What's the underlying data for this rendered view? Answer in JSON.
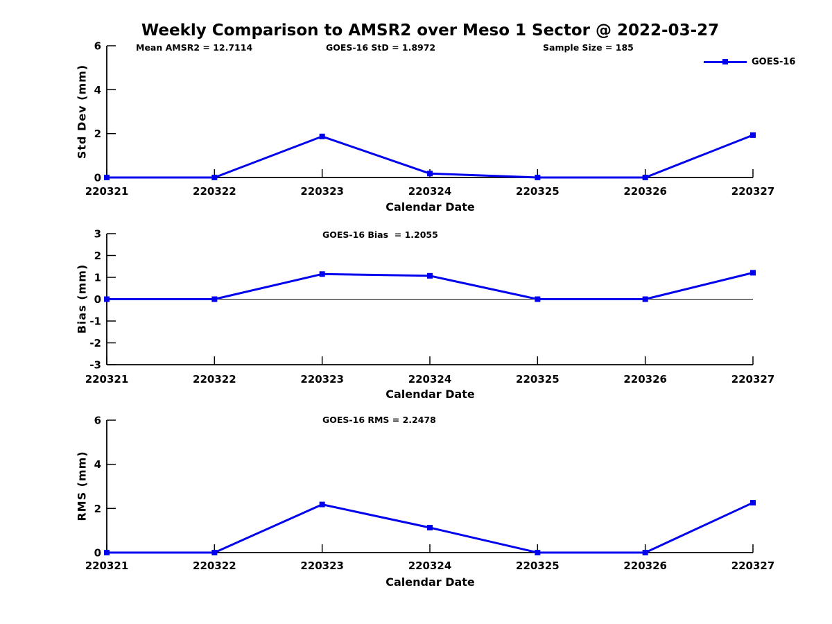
{
  "title": "Weekly Comparison to AMSR2 over Meso 1 Sector @ 2022-03-27",
  "legend": {
    "label": "GOES-16"
  },
  "colors": {
    "line": "#0000EE",
    "axis": "#000000"
  },
  "chart_data": [
    {
      "type": "line",
      "name": "std-dev",
      "annotations": [
        "Mean AMSR2 = 12.7114",
        "GOES-16 StD = 1.8972",
        "Sample Size = 185"
      ],
      "ylabel": "Std Dev (mm)",
      "xlabel": "Calendar Date",
      "categories": [
        "220321",
        "220322",
        "220323",
        "220324",
        "220325",
        "220326",
        "220327"
      ],
      "series": [
        {
          "name": "GOES-16",
          "values": [
            0,
            0,
            1.87,
            0.18,
            0,
            0,
            1.93
          ]
        }
      ],
      "ylim": [
        0,
        6
      ],
      "yticks": [
        0,
        2,
        4,
        6
      ],
      "zero_line": false,
      "legend_position": "upper right",
      "grid": false
    },
    {
      "type": "line",
      "name": "bias",
      "annotations": [
        "GOES-16 Bias  = 1.2055"
      ],
      "ylabel": "Bias (mm)",
      "xlabel": "Calendar Date",
      "categories": [
        "220321",
        "220322",
        "220323",
        "220324",
        "220325",
        "220326",
        "220327"
      ],
      "series": [
        {
          "name": "GOES-16",
          "values": [
            0,
            0,
            1.15,
            1.07,
            0,
            0,
            1.21
          ]
        }
      ],
      "ylim": [
        -3,
        3
      ],
      "yticks": [
        -3,
        -2,
        -1,
        0,
        1,
        2,
        3
      ],
      "zero_line": true,
      "grid": false
    },
    {
      "type": "line",
      "name": "rms",
      "annotations": [
        "GOES-16 RMS = 2.2478"
      ],
      "ylabel": "RMS (mm)",
      "xlabel": "Calendar Date",
      "categories": [
        "220321",
        "220322",
        "220323",
        "220324",
        "220325",
        "220326",
        "220327"
      ],
      "series": [
        {
          "name": "GOES-16",
          "values": [
            0,
            0,
            2.18,
            1.13,
            0,
            0,
            2.26
          ]
        }
      ],
      "ylim": [
        0,
        6
      ],
      "yticks": [
        0,
        2,
        4,
        6
      ],
      "zero_line": false,
      "grid": false
    }
  ]
}
